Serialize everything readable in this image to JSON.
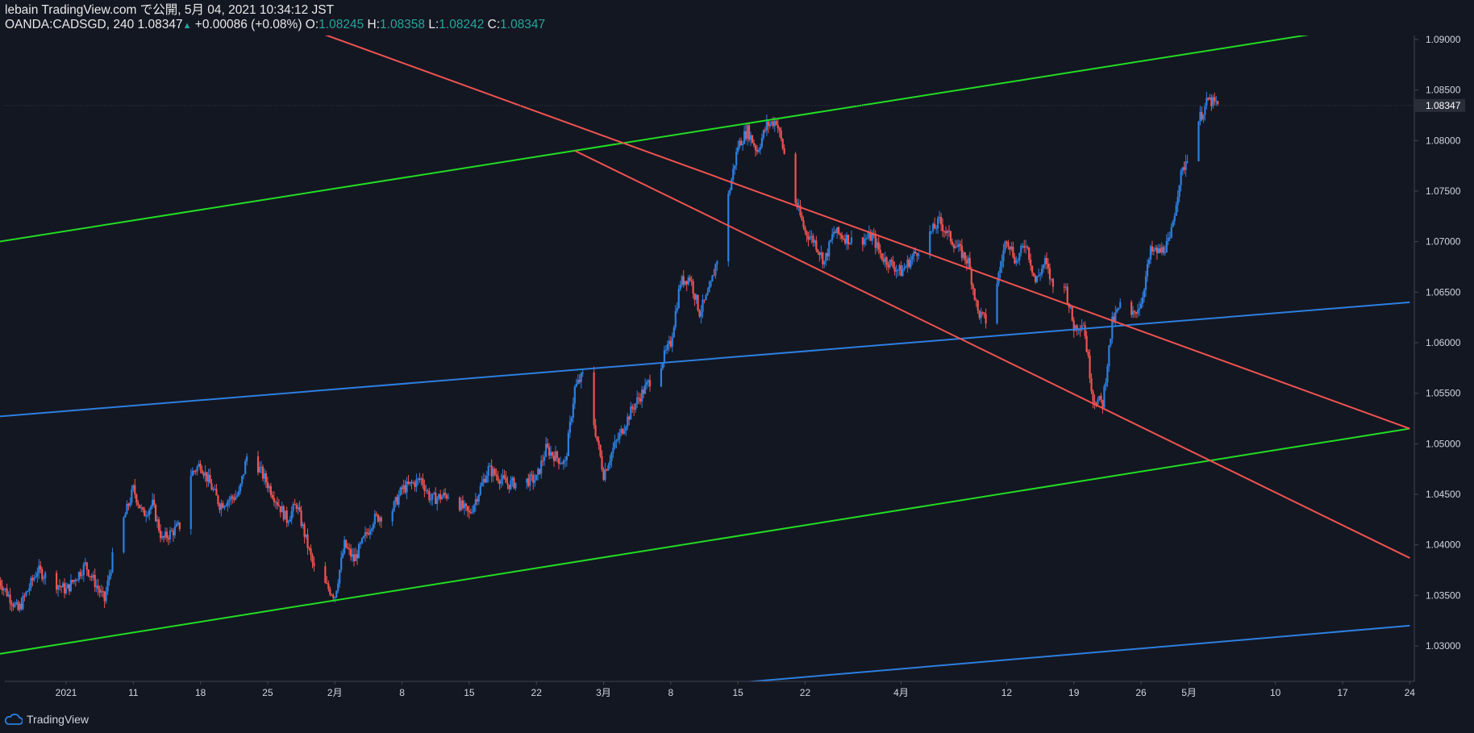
{
  "header": {
    "line1": "lebain TradingView.com で公開, 5月 04, 2021 10:34:12 JST",
    "symbol": "OANDA:CADSGD, 240",
    "last": "1.08347",
    "change": "+0.00086 (+0.08%)",
    "o_label": "O:",
    "o_val": "1.08245",
    "h_label": "H:",
    "h_val": "1.08358",
    "l_label": "L:",
    "l_val": "1.08242",
    "c_label": "C:",
    "c_val": "1.08347"
  },
  "footer": {
    "brand": "TradingView"
  },
  "colors": {
    "background": "#131722",
    "up": "#2d7fe0",
    "down": "#ef5350",
    "green_line": "#22dd22",
    "blue_line": "#2d7fe0",
    "red_line": "#ef5350",
    "price_tag_bg": "#2a2e39"
  },
  "chart_data": {
    "type": "candlestick",
    "symbol": "OANDA:CADSGD",
    "interval": "240",
    "x_ticks": [
      "2021",
      "11",
      "18",
      "25",
      "2月",
      "8",
      "15",
      "22",
      "3月",
      "8",
      "15",
      "22",
      "4月",
      "12",
      "19",
      "26",
      "5月",
      "10",
      "17",
      "24"
    ],
    "x_dates": [
      "2021-01-04",
      "2021-01-11",
      "2021-01-18",
      "2021-01-25",
      "2021-02-01",
      "2021-02-08",
      "2021-02-15",
      "2021-02-22",
      "2021-03-01",
      "2021-03-08",
      "2021-03-15",
      "2021-03-22",
      "2021-04-01",
      "2021-04-12",
      "2021-04-19",
      "2021-04-26",
      "2021-05-01",
      "2021-05-10",
      "2021-05-17",
      "2021-05-24"
    ],
    "y_ticks": [
      "1.09000",
      "1.08500",
      "1.08000",
      "1.07500",
      "1.07000",
      "1.06500",
      "1.06000",
      "1.05500",
      "1.05000",
      "1.04500",
      "1.04000",
      "1.03500",
      "1.03000"
    ],
    "ylim": [
      1.0262,
      1.0915
    ],
    "x_range": [
      "2020-12-28",
      "2021-05-24"
    ],
    "last_price": "1.08347",
    "close_path": [
      [
        "2020-12-28",
        1.0365
      ],
      [
        "2020-12-30",
        1.0335
      ],
      [
        "2021-01-01",
        1.0375
      ],
      [
        "2021-01-04",
        1.0355
      ],
      [
        "2021-01-06",
        1.038
      ],
      [
        "2021-01-08",
        1.0345
      ],
      [
        "2021-01-09",
        1.0395
      ],
      [
        "2021-01-10",
        1.0425
      ],
      [
        "2021-01-11",
        1.0455
      ],
      [
        "2021-01-12",
        1.043
      ],
      [
        "2021-01-13",
        1.044
      ],
      [
        "2021-01-14",
        1.0405
      ],
      [
        "2021-01-16",
        1.042
      ],
      [
        "2021-01-17",
        1.047
      ],
      [
        "2021-01-18",
        1.048
      ],
      [
        "2021-01-20",
        1.044
      ],
      [
        "2021-01-22",
        1.045
      ],
      [
        "2021-01-23",
        1.0495
      ],
      [
        "2021-01-25",
        1.046
      ],
      [
        "2021-01-27",
        1.0425
      ],
      [
        "2021-01-28",
        1.044
      ],
      [
        "2021-01-30",
        1.037
      ],
      [
        "2021-02-01",
        1.035
      ],
      [
        "2021-02-02",
        1.04
      ],
      [
        "2021-02-03",
        1.0385
      ],
      [
        "2021-02-05",
        1.0425
      ],
      [
        "2021-02-07",
        1.0435
      ],
      [
        "2021-02-08",
        1.0455
      ],
      [
        "2021-02-10",
        1.0465
      ],
      [
        "2021-02-11",
        1.0445
      ],
      [
        "2021-02-13",
        1.045
      ],
      [
        "2021-02-15",
        1.043
      ],
      [
        "2021-02-17",
        1.0475
      ],
      [
        "2021-02-19",
        1.046
      ],
      [
        "2021-02-22",
        1.0465
      ],
      [
        "2021-02-23",
        1.0495
      ],
      [
        "2021-02-25",
        1.048
      ],
      [
        "2021-02-26",
        1.0555
      ],
      [
        "2021-02-27",
        1.057
      ],
      [
        "2021-03-01",
        1.047
      ],
      [
        "2021-03-02",
        1.0495
      ],
      [
        "2021-03-04",
        1.0535
      ],
      [
        "2021-03-05",
        1.055
      ],
      [
        "2021-03-07",
        1.058
      ],
      [
        "2021-03-08",
        1.06
      ],
      [
        "2021-03-09",
        1.066
      ],
      [
        "2021-03-10",
        1.0665
      ],
      [
        "2021-03-11",
        1.063
      ],
      [
        "2021-03-12",
        1.065
      ],
      [
        "2021-03-13",
        1.069
      ],
      [
        "2021-03-14",
        1.0745
      ],
      [
        "2021-03-15",
        1.0795
      ],
      [
        "2021-03-16",
        1.081
      ],
      [
        "2021-03-17",
        1.079
      ],
      [
        "2021-03-18",
        1.0815
      ],
      [
        "2021-03-19",
        1.082
      ],
      [
        "2021-03-20",
        1.078
      ],
      [
        "2021-03-21",
        1.074
      ],
      [
        "2021-03-22",
        1.071
      ],
      [
        "2021-03-23",
        1.07
      ],
      [
        "2021-03-24",
        1.068
      ],
      [
        "2021-03-25",
        1.071
      ],
      [
        "2021-03-27",
        1.07
      ],
      [
        "2021-03-29",
        1.0705
      ],
      [
        "2021-03-30",
        1.0685
      ],
      [
        "2021-04-01",
        1.067
      ],
      [
        "2021-04-03",
        1.0695
      ],
      [
        "2021-04-05",
        1.072
      ],
      [
        "2021-04-06",
        1.0705
      ],
      [
        "2021-04-08",
        1.068
      ],
      [
        "2021-04-09",
        1.063
      ],
      [
        "2021-04-10",
        1.062
      ],
      [
        "2021-04-11",
        1.066
      ],
      [
        "2021-04-12",
        1.0705
      ],
      [
        "2021-04-13",
        1.068
      ],
      [
        "2021-04-14",
        1.07
      ],
      [
        "2021-04-15",
        1.066
      ],
      [
        "2021-04-16",
        1.068
      ],
      [
        "2021-04-17",
        1.065
      ],
      [
        "2021-04-18",
        1.066
      ],
      [
        "2021-04-19",
        1.0615
      ],
      [
        "2021-04-20",
        1.062
      ],
      [
        "2021-04-21",
        1.0545
      ],
      [
        "2021-04-22",
        1.054
      ],
      [
        "2021-04-23",
        1.062
      ],
      [
        "2021-04-24",
        1.064
      ],
      [
        "2021-04-25",
        1.0625
      ],
      [
        "2021-04-26",
        1.064
      ],
      [
        "2021-04-27",
        1.069
      ],
      [
        "2021-04-28",
        1.069
      ],
      [
        "2021-04-29",
        1.07
      ],
      [
        "2021-04-30",
        1.076
      ],
      [
        "2021-05-01",
        1.079
      ],
      [
        "2021-05-02",
        1.082
      ],
      [
        "2021-05-03",
        1.084
      ],
      [
        "2021-05-04",
        1.08347
      ]
    ],
    "trend_lines": [
      {
        "color": "green",
        "points": [
          [
            "2020-12-28",
            1.07
          ],
          [
            "2021-05-17",
            1.091
          ]
        ]
      },
      {
        "color": "green",
        "points": [
          [
            "2020-12-28",
            1.0292
          ],
          [
            "2021-05-24",
            1.0515
          ]
        ]
      },
      {
        "color": "blue",
        "points": [
          [
            "2020-12-28",
            1.0527
          ],
          [
            "2021-05-24",
            1.064
          ]
        ]
      },
      {
        "color": "blue",
        "points": [
          [
            "2021-03-13",
            1.0262
          ],
          [
            "2021-05-24",
            1.032
          ]
        ]
      },
      {
        "color": "red",
        "points": [
          [
            "2021-01-28",
            1.0915
          ],
          [
            "2021-05-24",
            1.0515
          ]
        ]
      },
      {
        "color": "red",
        "points": [
          [
            "2021-02-26",
            1.079
          ],
          [
            "2021-05-24",
            1.0387
          ]
        ]
      }
    ]
  }
}
